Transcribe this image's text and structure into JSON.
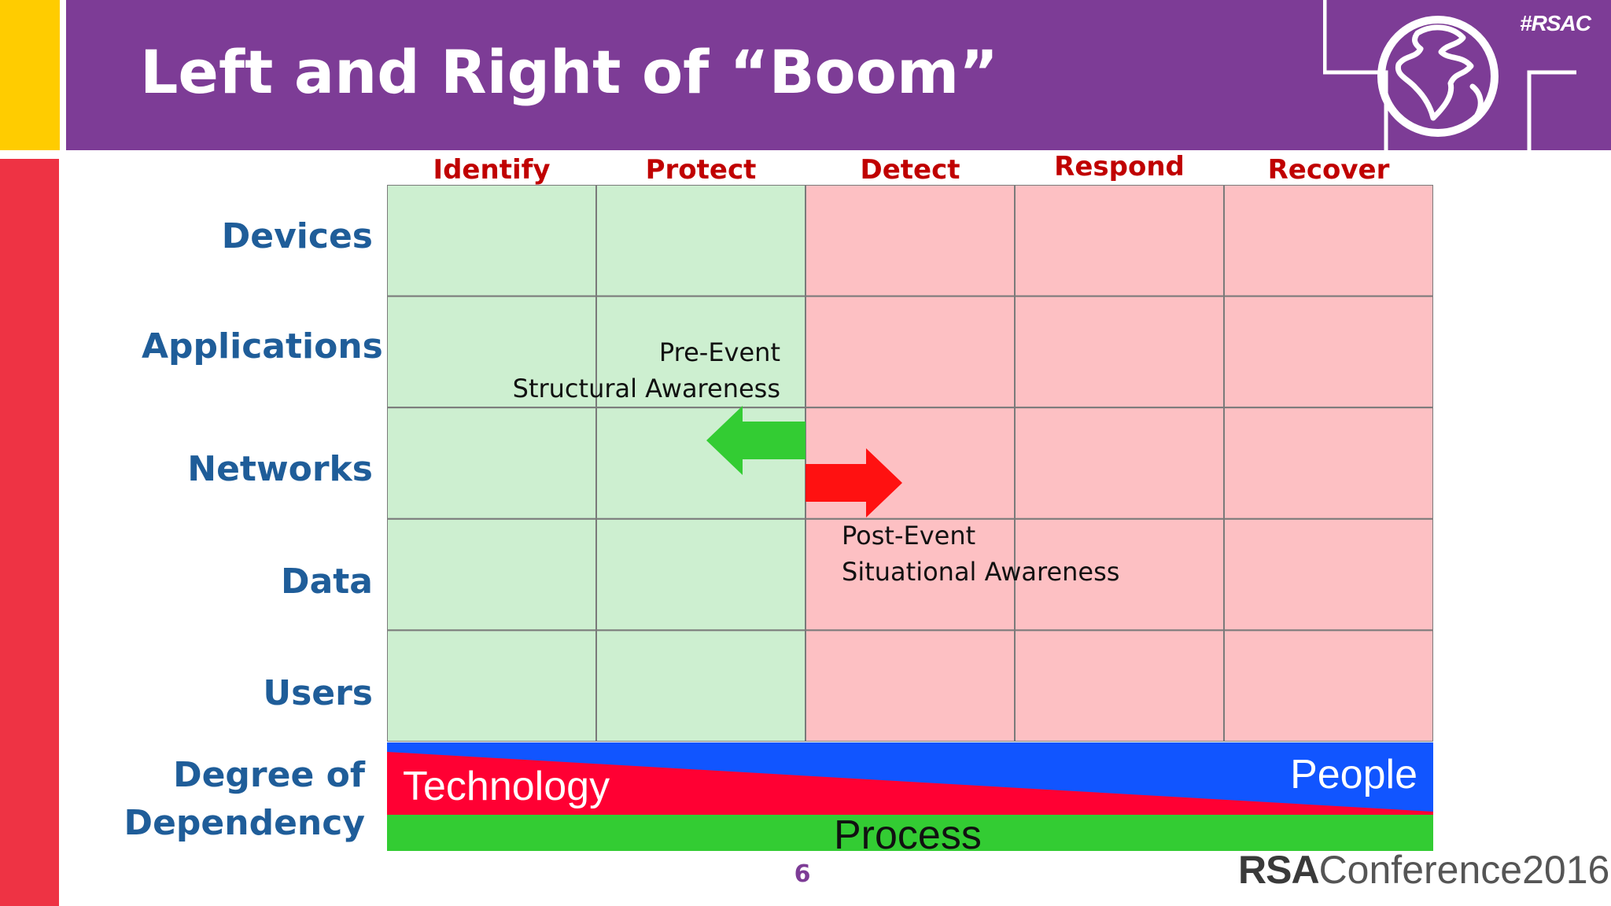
{
  "slide": {
    "title": "Left and Right of “Boom”",
    "hashtag": "#RSAC",
    "page_number": "6"
  },
  "matrix": {
    "columns": [
      "Identify",
      "Protect",
      "Detect",
      "Respond",
      "Recover"
    ],
    "rows": [
      "Devices",
      "Applications",
      "Networks",
      "Data",
      "Users"
    ],
    "left_zone_color": "#CDEFD0",
    "right_zone_color": "#FDC0C3",
    "grid_line_color": "#7A7A7A"
  },
  "annotations": {
    "pre_event_line1": "Pre-Event",
    "pre_event_line2": "Structural Awareness",
    "post_event_line1": "Post-Event",
    "post_event_line2": "Situational Awareness",
    "left_arrow_color": "#33CC33",
    "right_arrow_color": "#FF1111"
  },
  "dependency": {
    "label_line1": "Degree of",
    "label_line2": "Dependency",
    "technology": "Technology",
    "people": "People",
    "process": "Process",
    "technology_color": "#FF0033",
    "people_color": "#1155FF",
    "process_color": "#33CC33"
  },
  "logo": {
    "brand": "RSA",
    "conference": "Conference2016"
  }
}
